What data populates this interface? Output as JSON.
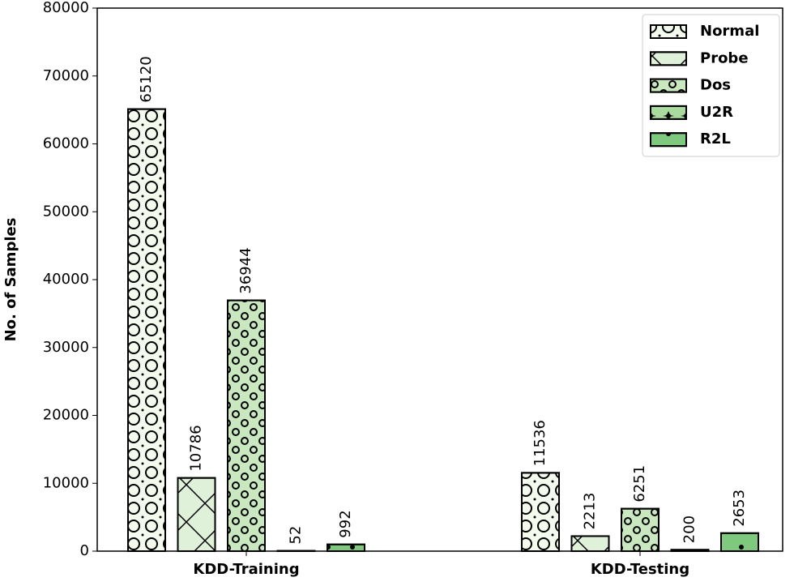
{
  "chart_data": {
    "type": "bar",
    "ylabel": "No. of Samples",
    "categories": [
      "KDD-Training",
      "KDD-Testing"
    ],
    "series": [
      {
        "name": "Normal",
        "color": "#f4faee",
        "values": [
          65120,
          11536
        ]
      },
      {
        "name": "Probe",
        "color": "#e0f1da",
        "values": [
          10786,
          2213
        ]
      },
      {
        "name": "Dos",
        "color": "#cae8c0",
        "values": [
          36944,
          6251
        ]
      },
      {
        "name": "U2R",
        "color": "#a9da9e",
        "values": [
          52,
          200
        ]
      },
      {
        "name": "R2L",
        "color": "#7fc97f",
        "values": [
          992,
          2653
        ]
      }
    ],
    "ylim": [
      0,
      80000
    ],
    "yticks": [
      0,
      10000,
      20000,
      30000,
      40000,
      50000,
      60000,
      70000,
      80000
    ],
    "legend": "upper right"
  }
}
